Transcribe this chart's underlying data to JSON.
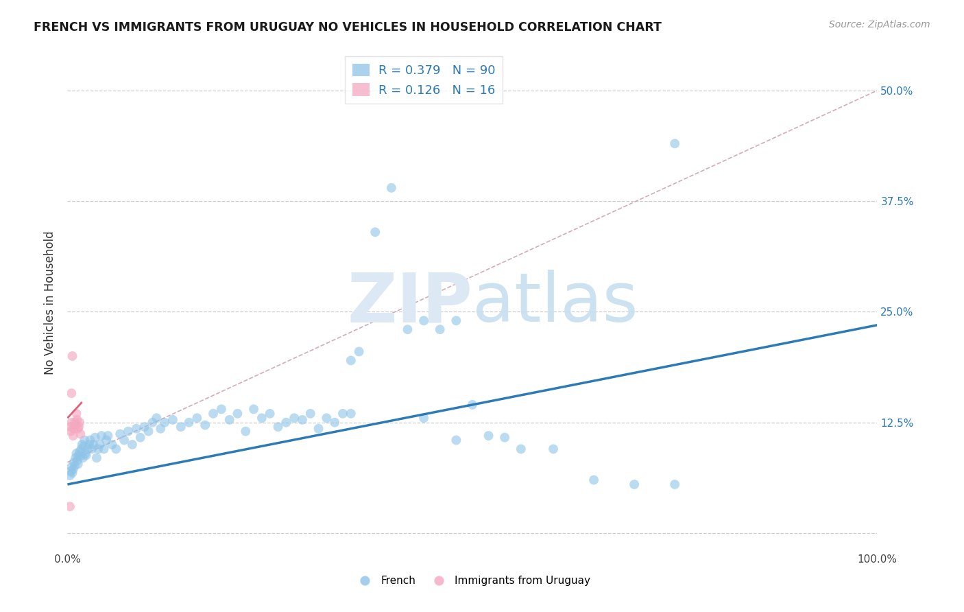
{
  "title": "FRENCH VS IMMIGRANTS FROM URUGUAY NO VEHICLES IN HOUSEHOLD CORRELATION CHART",
  "source": "Source: ZipAtlas.com",
  "ylabel": "No Vehicles in Household",
  "xlim": [
    0.0,
    1.0
  ],
  "ylim": [
    -0.02,
    0.54
  ],
  "xtick_positions": [
    0.0,
    0.1,
    0.2,
    0.3,
    0.4,
    0.5,
    0.6,
    0.7,
    0.8,
    0.9,
    1.0
  ],
  "xticklabels": [
    "0.0%",
    "",
    "",
    "",
    "",
    "",
    "",
    "",
    "",
    "",
    "100.0%"
  ],
  "ytick_positions": [
    0.0,
    0.125,
    0.25,
    0.375,
    0.5
  ],
  "yticklabels": [
    "",
    "12.5%",
    "25.0%",
    "37.5%",
    "50.0%"
  ],
  "french_R": 0.379,
  "french_N": 90,
  "uruguay_R": 0.126,
  "uruguay_N": 16,
  "french_color": "#8ec4e8",
  "uruguay_color": "#f4a8c0",
  "french_line_color": "#2c7bb6",
  "uruguay_line_color": "#e0607a",
  "trendline_color": "#d4aab8",
  "watermark_color": "#dce9f5",
  "legend_french_label": "French",
  "legend_uruguay_label": "Immigrants from Uruguay",
  "french_line": [
    0.0,
    0.055,
    1.0,
    0.235
  ],
  "uruguay_line": [
    0.0,
    0.13,
    0.018,
    0.148
  ],
  "diag_line": [
    0.0,
    0.08,
    1.0,
    0.5
  ],
  "french_x": [
    0.003,
    0.004,
    0.005,
    0.006,
    0.007,
    0.008,
    0.009,
    0.01,
    0.011,
    0.012,
    0.013,
    0.014,
    0.015,
    0.016,
    0.017,
    0.018,
    0.019,
    0.02,
    0.021,
    0.022,
    0.023,
    0.025,
    0.027,
    0.028,
    0.03,
    0.032,
    0.034,
    0.036,
    0.038,
    0.04,
    0.042,
    0.045,
    0.048,
    0.05,
    0.055,
    0.06,
    0.065,
    0.07,
    0.075,
    0.08,
    0.085,
    0.09,
    0.095,
    0.1,
    0.105,
    0.11,
    0.115,
    0.12,
    0.13,
    0.14,
    0.15,
    0.16,
    0.17,
    0.18,
    0.19,
    0.2,
    0.21,
    0.22,
    0.23,
    0.24,
    0.25,
    0.26,
    0.27,
    0.28,
    0.29,
    0.3,
    0.31,
    0.32,
    0.33,
    0.34,
    0.35,
    0.36,
    0.38,
    0.4,
    0.42,
    0.44,
    0.46,
    0.48,
    0.5,
    0.52,
    0.54,
    0.56,
    0.6,
    0.65,
    0.7,
    0.75,
    0.44,
    0.35,
    0.48,
    0.75
  ],
  "french_y": [
    0.065,
    0.07,
    0.075,
    0.068,
    0.072,
    0.08,
    0.076,
    0.085,
    0.09,
    0.082,
    0.078,
    0.088,
    0.092,
    0.087,
    0.095,
    0.1,
    0.085,
    0.098,
    0.105,
    0.09,
    0.088,
    0.095,
    0.1,
    0.105,
    0.095,
    0.1,
    0.108,
    0.085,
    0.095,
    0.1,
    0.11,
    0.095,
    0.105,
    0.11,
    0.1,
    0.095,
    0.112,
    0.105,
    0.115,
    0.1,
    0.118,
    0.108,
    0.12,
    0.115,
    0.125,
    0.13,
    0.118,
    0.125,
    0.128,
    0.12,
    0.125,
    0.13,
    0.122,
    0.135,
    0.14,
    0.128,
    0.135,
    0.115,
    0.14,
    0.13,
    0.135,
    0.12,
    0.125,
    0.13,
    0.128,
    0.135,
    0.118,
    0.13,
    0.125,
    0.135,
    0.195,
    0.205,
    0.34,
    0.39,
    0.23,
    0.24,
    0.23,
    0.24,
    0.145,
    0.11,
    0.108,
    0.095,
    0.095,
    0.06,
    0.055,
    0.44,
    0.13,
    0.135,
    0.105,
    0.055
  ],
  "uruguay_x": [
    0.003,
    0.004,
    0.005,
    0.006,
    0.007,
    0.008,
    0.009,
    0.01,
    0.011,
    0.012,
    0.013,
    0.014,
    0.015,
    0.016,
    0.003,
    0.005
  ],
  "uruguay_y": [
    0.12,
    0.115,
    0.125,
    0.2,
    0.11,
    0.118,
    0.125,
    0.122,
    0.135,
    0.128,
    0.118,
    0.12,
    0.125,
    0.112,
    0.03,
    0.158
  ],
  "marker_size": 100
}
